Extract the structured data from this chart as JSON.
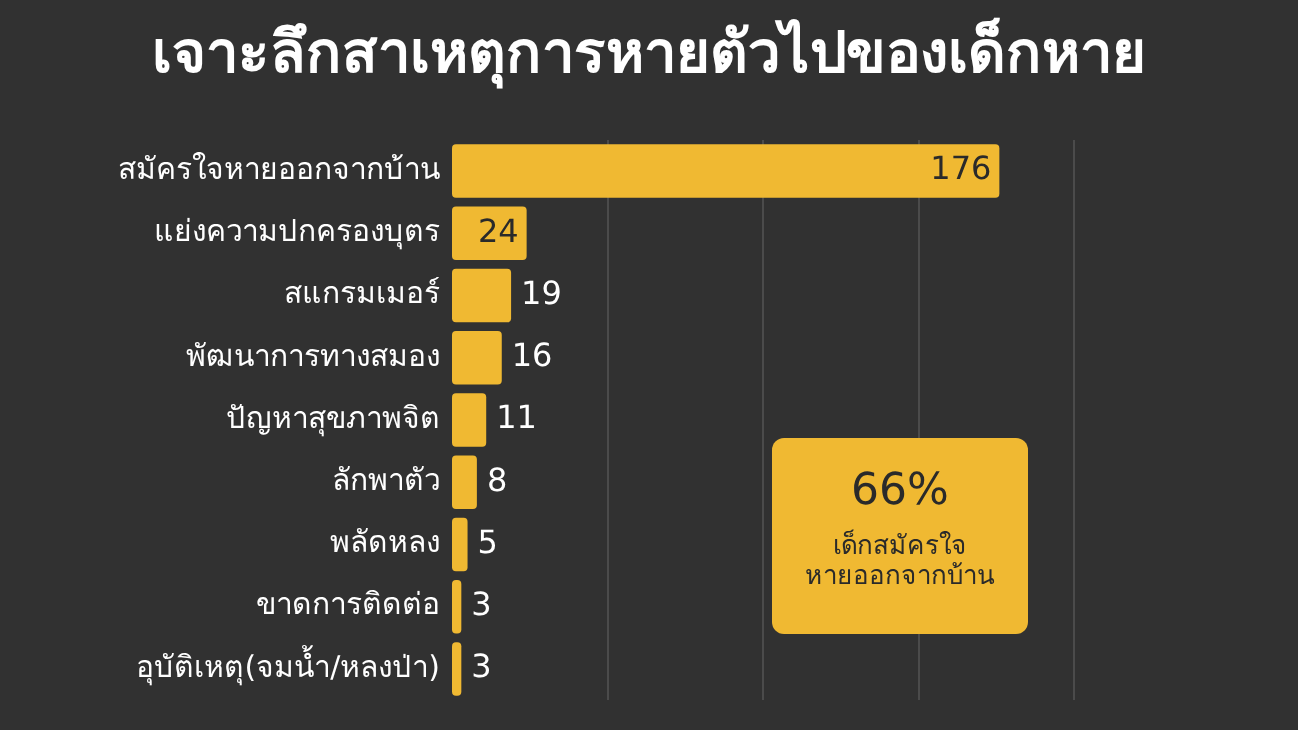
{
  "chart_data": {
    "type": "bar",
    "orientation": "horizontal",
    "title": "เจาะลึกสาเหตุการหายตัวไปของเด็กหาย",
    "categories": [
      "สมัครใจหายออกจากบ้าน",
      "แย่งความปกครองบุตร",
      "สแกรมเมอร์",
      "พัฒนาการทางสมอง",
      "ปัญหาสุขภาพจิต",
      "ลักพาตัว",
      "พลัดหลง",
      "ขาดการติดต่อ",
      "อุบัติเหตุ(จมน้ำ/หลงป่า)"
    ],
    "values": [
      176,
      24,
      19,
      16,
      11,
      8,
      5,
      3,
      3
    ],
    "color": "#f0b932",
    "data_labels": true,
    "xlim": [
      0,
      200
    ],
    "xticks": [
      {
        "value": 50,
        "label": null
      },
      {
        "value": 100,
        "label": null
      },
      {
        "value": 150,
        "label": null
      },
      {
        "value": 200,
        "label": null
      }
    ],
    "grid": "x",
    "tick_labels": "y",
    "annotations": [
      "66%",
      "เด็กสมัครใจ\nหายออกจากบ้าน"
    ]
  }
}
